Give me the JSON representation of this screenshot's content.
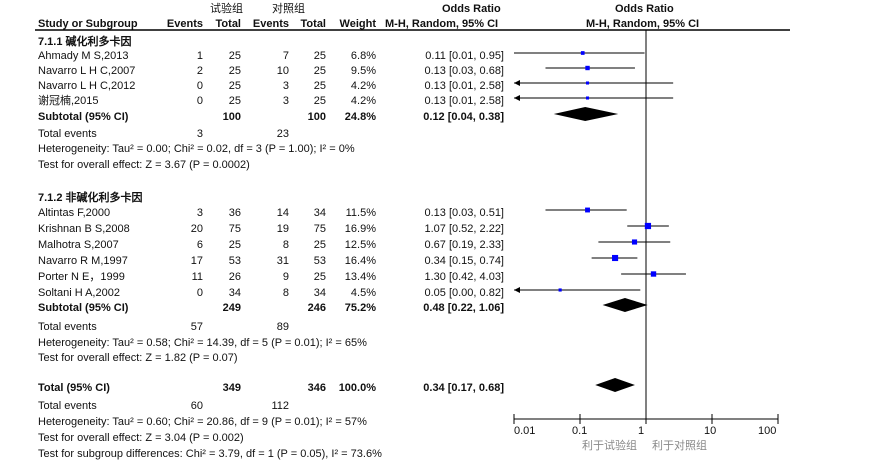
{
  "header": {
    "group1": "试验组",
    "group2": "对照组",
    "study_col": "Study or Subgroup",
    "events1": "Events",
    "total1": "Total",
    "events2": "Events",
    "total2": "Total",
    "weight": "Weight",
    "or_title": "Odds Ratio",
    "or_method": "M-H, Random, 95% CI",
    "plot_title": "Odds Ratio",
    "plot_method": "M-H, Random, 95% CI"
  },
  "chart_data": {
    "type": "forest",
    "x_scale": "log",
    "xlim": [
      0.01,
      100
    ],
    "x_ticks": [
      "0.01",
      "0.1",
      "1",
      "10",
      "100"
    ],
    "reference_line": 1,
    "favours_left": "利于试验组",
    "favours_right": "利于对照组",
    "colors": {
      "study_marker": "#0000ff",
      "pooled_diamond": "#000000"
    },
    "subgroups": [
      {
        "label": "7.1.1 碱化利多卡因",
        "studies": [
          {
            "name": "Ahmady M S,2013",
            "e1": "1",
            "n1": "25",
            "e2": "7",
            "n2": "25",
            "weight": "6.8%",
            "ci_text": "0.11 [0.01, 0.95]",
            "or": 0.11,
            "lo": 0.01,
            "hi": 0.95
          },
          {
            "name": "Navarro L H C,2007",
            "e1": "2",
            "n1": "25",
            "e2": "10",
            "n2": "25",
            "weight": "9.5%",
            "ci_text": "0.13 [0.03, 0.68]",
            "or": 0.13,
            "lo": 0.03,
            "hi": 0.68
          },
          {
            "name": "Navarro L H C,2012",
            "e1": "0",
            "n1": "25",
            "e2": "3",
            "n2": "25",
            "weight": "4.2%",
            "ci_text": "0.13 [0.01, 2.58]",
            "or": 0.13,
            "lo": 0.0065,
            "hi": 2.58
          },
          {
            "name": "谢冠楠,2015",
            "e1": "0",
            "n1": "25",
            "e2": "3",
            "n2": "25",
            "weight": "4.2%",
            "ci_text": "0.13 [0.01, 2.58]",
            "or": 0.13,
            "lo": 0.0065,
            "hi": 2.58
          }
        ],
        "subtotal": {
          "label": "Subtotal (95% CI)",
          "n1": "100",
          "n2": "100",
          "weight": "24.8%",
          "ci_text": "0.12 [0.04, 0.38]",
          "or": 0.12,
          "lo": 0.04,
          "hi": 0.38
        },
        "total_events": {
          "label": "Total events",
          "e1": "3",
          "e2": "23"
        },
        "heterogeneity": "Heterogeneity: Tau² = 0.00; Chi² = 0.02, df = 3 (P = 1.00); I² = 0%",
        "overall_effect": "Test for overall effect: Z = 3.67 (P = 0.0002)"
      },
      {
        "label": "7.1.2 非碱化利多卡因",
        "studies": [
          {
            "name": "Altintas F,2000",
            "e1": "3",
            "n1": "36",
            "e2": "14",
            "n2": "34",
            "weight": "11.5%",
            "ci_text": "0.13 [0.03, 0.51]",
            "or": 0.13,
            "lo": 0.03,
            "hi": 0.51
          },
          {
            "name": "Krishnan B S,2008",
            "e1": "20",
            "n1": "75",
            "e2": "19",
            "n2": "75",
            "weight": "16.9%",
            "ci_text": "1.07 [0.52, 2.22]",
            "or": 1.07,
            "lo": 0.52,
            "hi": 2.22
          },
          {
            "name": "Malhotra S,2007",
            "e1": "6",
            "n1": "25",
            "e2": "8",
            "n2": "25",
            "weight": "12.5%",
            "ci_text": "0.67 [0.19, 2.33]",
            "or": 0.67,
            "lo": 0.19,
            "hi": 2.33
          },
          {
            "name": "Navarro R M,1997",
            "e1": "17",
            "n1": "53",
            "e2": "31",
            "n2": "53",
            "weight": "16.4%",
            "ci_text": "0.34 [0.15, 0.74]",
            "or": 0.34,
            "lo": 0.15,
            "hi": 0.74
          },
          {
            "name": "Porter N E，1999",
            "e1": "11",
            "n1": "26",
            "e2": "9",
            "n2": "25",
            "weight": "13.4%",
            "ci_text": "1.30 [0.42, 4.03]",
            "or": 1.3,
            "lo": 0.42,
            "hi": 4.03
          },
          {
            "name": "Soltani H A,2002",
            "e1": "0",
            "n1": "34",
            "e2": "8",
            "n2": "34",
            "weight": "4.5%",
            "ci_text": "0.05 [0.00, 0.82]",
            "or": 0.05,
            "lo": 0.003,
            "hi": 0.82
          }
        ],
        "subtotal": {
          "label": "Subtotal (95% CI)",
          "n1": "249",
          "n2": "246",
          "weight": "75.2%",
          "ci_text": "0.48 [0.22, 1.06]",
          "or": 0.48,
          "lo": 0.22,
          "hi": 1.06
        },
        "total_events": {
          "label": "Total events",
          "e1": "57",
          "e2": "89"
        },
        "heterogeneity": "Heterogeneity: Tau² = 0.58; Chi² = 14.39, df = 5 (P = 0.01); I² = 65%",
        "overall_effect": "Test for overall effect: Z = 1.82 (P = 0.07)"
      }
    ],
    "total": {
      "label": "Total (95% CI)",
      "n1": "349",
      "n2": "346",
      "weight": "100.0%",
      "ci_text": "0.34 [0.17, 0.68]",
      "or": 0.34,
      "lo": 0.17,
      "hi": 0.68
    },
    "total_events": {
      "label": "Total events",
      "e1": "60",
      "e2": "112"
    },
    "heterogeneity": "Heterogeneity: Tau² = 0.60; Chi² = 20.86, df = 9 (P = 0.01); I² = 57%",
    "overall_effect": "Test for overall effect: Z = 3.04 (P = 0.002)",
    "subgroup_differences": "Test for subgroup differences: Chi² = 3.79, df = 1 (P = 0.05), I² = 73.6%"
  }
}
